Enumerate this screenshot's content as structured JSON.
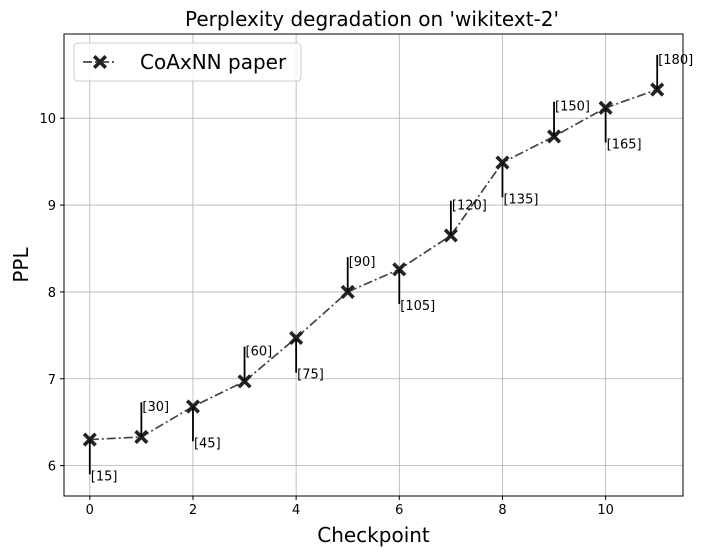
{
  "chart_data": {
    "type": "line",
    "title": "Perplexity degradation on 'wikitext-2'",
    "xlabel": "Checkpoint",
    "ylabel": "PPL",
    "xlim": [
      -0.5,
      11.5
    ],
    "ylim": [
      5.65,
      10.97
    ],
    "xticks": [
      0,
      2,
      4,
      6,
      8,
      10
    ],
    "yticks": [
      6,
      7,
      8,
      9,
      10
    ],
    "grid": true,
    "legend_position": "top-left",
    "series": [
      {
        "name": "CoAxNN paper",
        "color": "#444444",
        "linestyle": "dash-dot",
        "marker": "X",
        "x": [
          0,
          1,
          2,
          3,
          4,
          5,
          6,
          7,
          8,
          9,
          10,
          11
        ],
        "y": [
          6.3,
          6.33,
          6.68,
          6.97,
          7.47,
          8.0,
          8.26,
          8.65,
          9.49,
          9.79,
          10.12,
          10.33
        ]
      }
    ],
    "annotations": [
      {
        "x": 0,
        "y": 6.3,
        "text": "[15]",
        "direction": "down"
      },
      {
        "x": 1,
        "y": 6.33,
        "text": "[30]",
        "direction": "up"
      },
      {
        "x": 2,
        "y": 6.68,
        "text": "[45]",
        "direction": "down"
      },
      {
        "x": 3,
        "y": 6.97,
        "text": "[60]",
        "direction": "up"
      },
      {
        "x": 4,
        "y": 7.47,
        "text": "[75]",
        "direction": "down"
      },
      {
        "x": 5,
        "y": 8.0,
        "text": "[90]",
        "direction": "up"
      },
      {
        "x": 6,
        "y": 8.26,
        "text": "[105]",
        "direction": "down"
      },
      {
        "x": 7,
        "y": 8.65,
        "text": "[120]",
        "direction": "up"
      },
      {
        "x": 8,
        "y": 9.49,
        "text": "[135]",
        "direction": "down"
      },
      {
        "x": 9,
        "y": 9.79,
        "text": "[150]",
        "direction": "up"
      },
      {
        "x": 10,
        "y": 10.12,
        "text": "[165]",
        "direction": "down"
      },
      {
        "x": 11,
        "y": 10.33,
        "text": "[180]",
        "direction": "up"
      }
    ]
  }
}
